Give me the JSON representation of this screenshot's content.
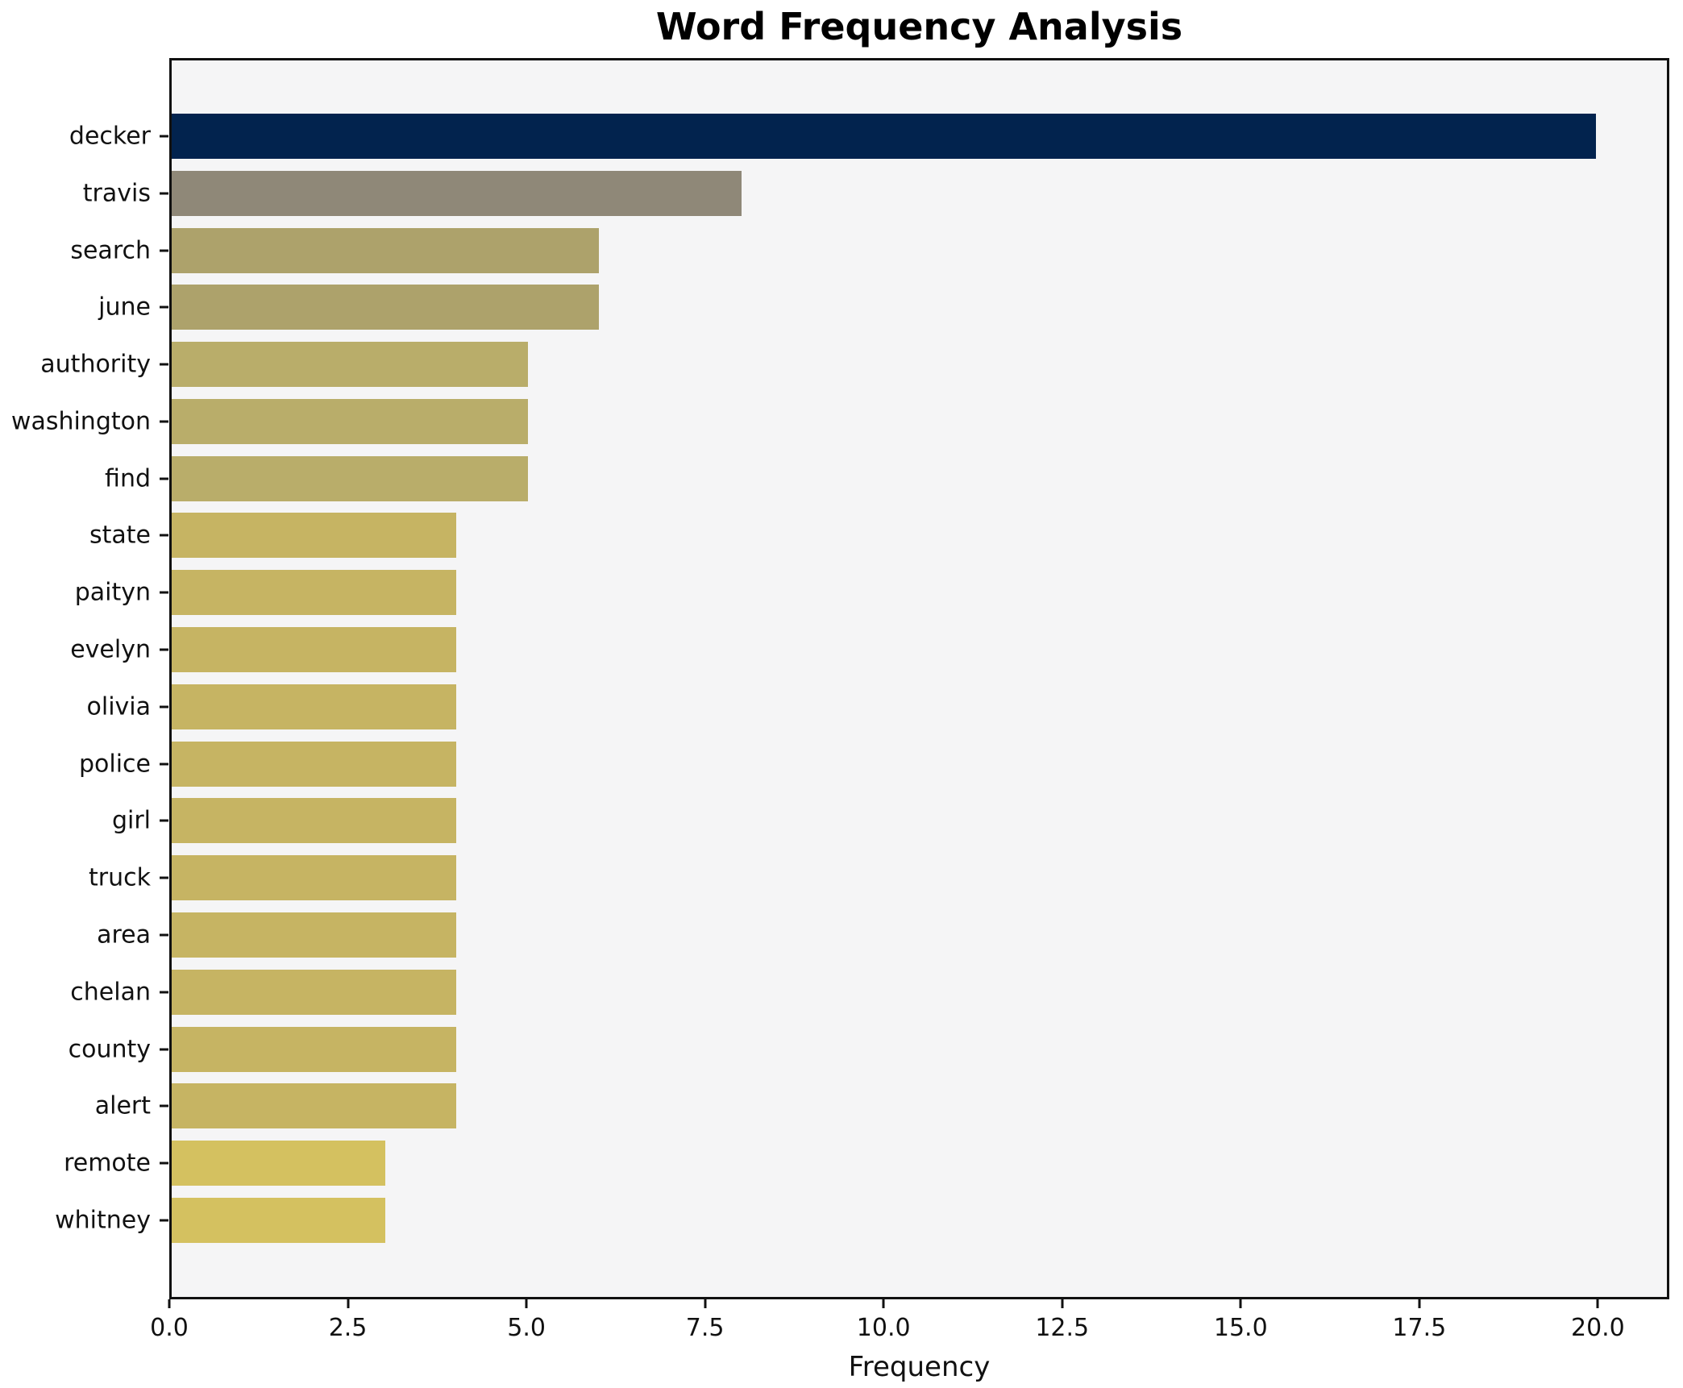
{
  "chart_data": {
    "type": "bar",
    "orientation": "horizontal",
    "title": "Word Frequency Analysis",
    "xlabel": "Frequency",
    "ylabel": "",
    "xlim": [
      0,
      21
    ],
    "grid": false,
    "plot_background": "#f5f5f6",
    "spine_color": "#111111",
    "categories": [
      "decker",
      "travis",
      "search",
      "june",
      "authority",
      "washington",
      "find",
      "state",
      "paityn",
      "evelyn",
      "olivia",
      "police",
      "girl",
      "truck",
      "area",
      "chelan",
      "county",
      "alert",
      "remote",
      "whitney"
    ],
    "values": [
      20,
      8,
      6,
      6,
      5,
      5,
      5,
      4,
      4,
      4,
      4,
      4,
      4,
      4,
      4,
      4,
      4,
      4,
      3,
      3
    ],
    "items": [
      {
        "word": "decker",
        "value": 20,
        "color": "#02234e"
      },
      {
        "word": "travis",
        "value": 8,
        "color": "#8f8878"
      },
      {
        "word": "search",
        "value": 6,
        "color": "#ada26b"
      },
      {
        "word": "june",
        "value": 6,
        "color": "#ada26b"
      },
      {
        "word": "authority",
        "value": 5,
        "color": "#b9ad6a"
      },
      {
        "word": "washington",
        "value": 5,
        "color": "#b9ad6a"
      },
      {
        "word": "find",
        "value": 5,
        "color": "#b9ad6a"
      },
      {
        "word": "state",
        "value": 4,
        "color": "#c6b463"
      },
      {
        "word": "paityn",
        "value": 4,
        "color": "#c6b463"
      },
      {
        "word": "evelyn",
        "value": 4,
        "color": "#c6b463"
      },
      {
        "word": "olivia",
        "value": 4,
        "color": "#c6b463"
      },
      {
        "word": "police",
        "value": 4,
        "color": "#c6b463"
      },
      {
        "word": "girl",
        "value": 4,
        "color": "#c6b463"
      },
      {
        "word": "truck",
        "value": 4,
        "color": "#c6b463"
      },
      {
        "word": "area",
        "value": 4,
        "color": "#c6b463"
      },
      {
        "word": "chelan",
        "value": 4,
        "color": "#c6b463"
      },
      {
        "word": "county",
        "value": 4,
        "color": "#c6b463"
      },
      {
        "word": "alert",
        "value": 4,
        "color": "#c6b463"
      },
      {
        "word": "remote",
        "value": 3,
        "color": "#d4c160"
      },
      {
        "word": "whitney",
        "value": 3,
        "color": "#d4c160"
      }
    ],
    "xticks": [
      {
        "value": 0,
        "label": "0.0"
      },
      {
        "value": 2.5,
        "label": "2.5"
      },
      {
        "value": 5,
        "label": "5.0"
      },
      {
        "value": 7.5,
        "label": "7.5"
      },
      {
        "value": 10,
        "label": "10.0"
      },
      {
        "value": 12.5,
        "label": "12.5"
      },
      {
        "value": 15,
        "label": "15.0"
      },
      {
        "value": 17.5,
        "label": "17.5"
      },
      {
        "value": 20,
        "label": "20.0"
      }
    ]
  }
}
